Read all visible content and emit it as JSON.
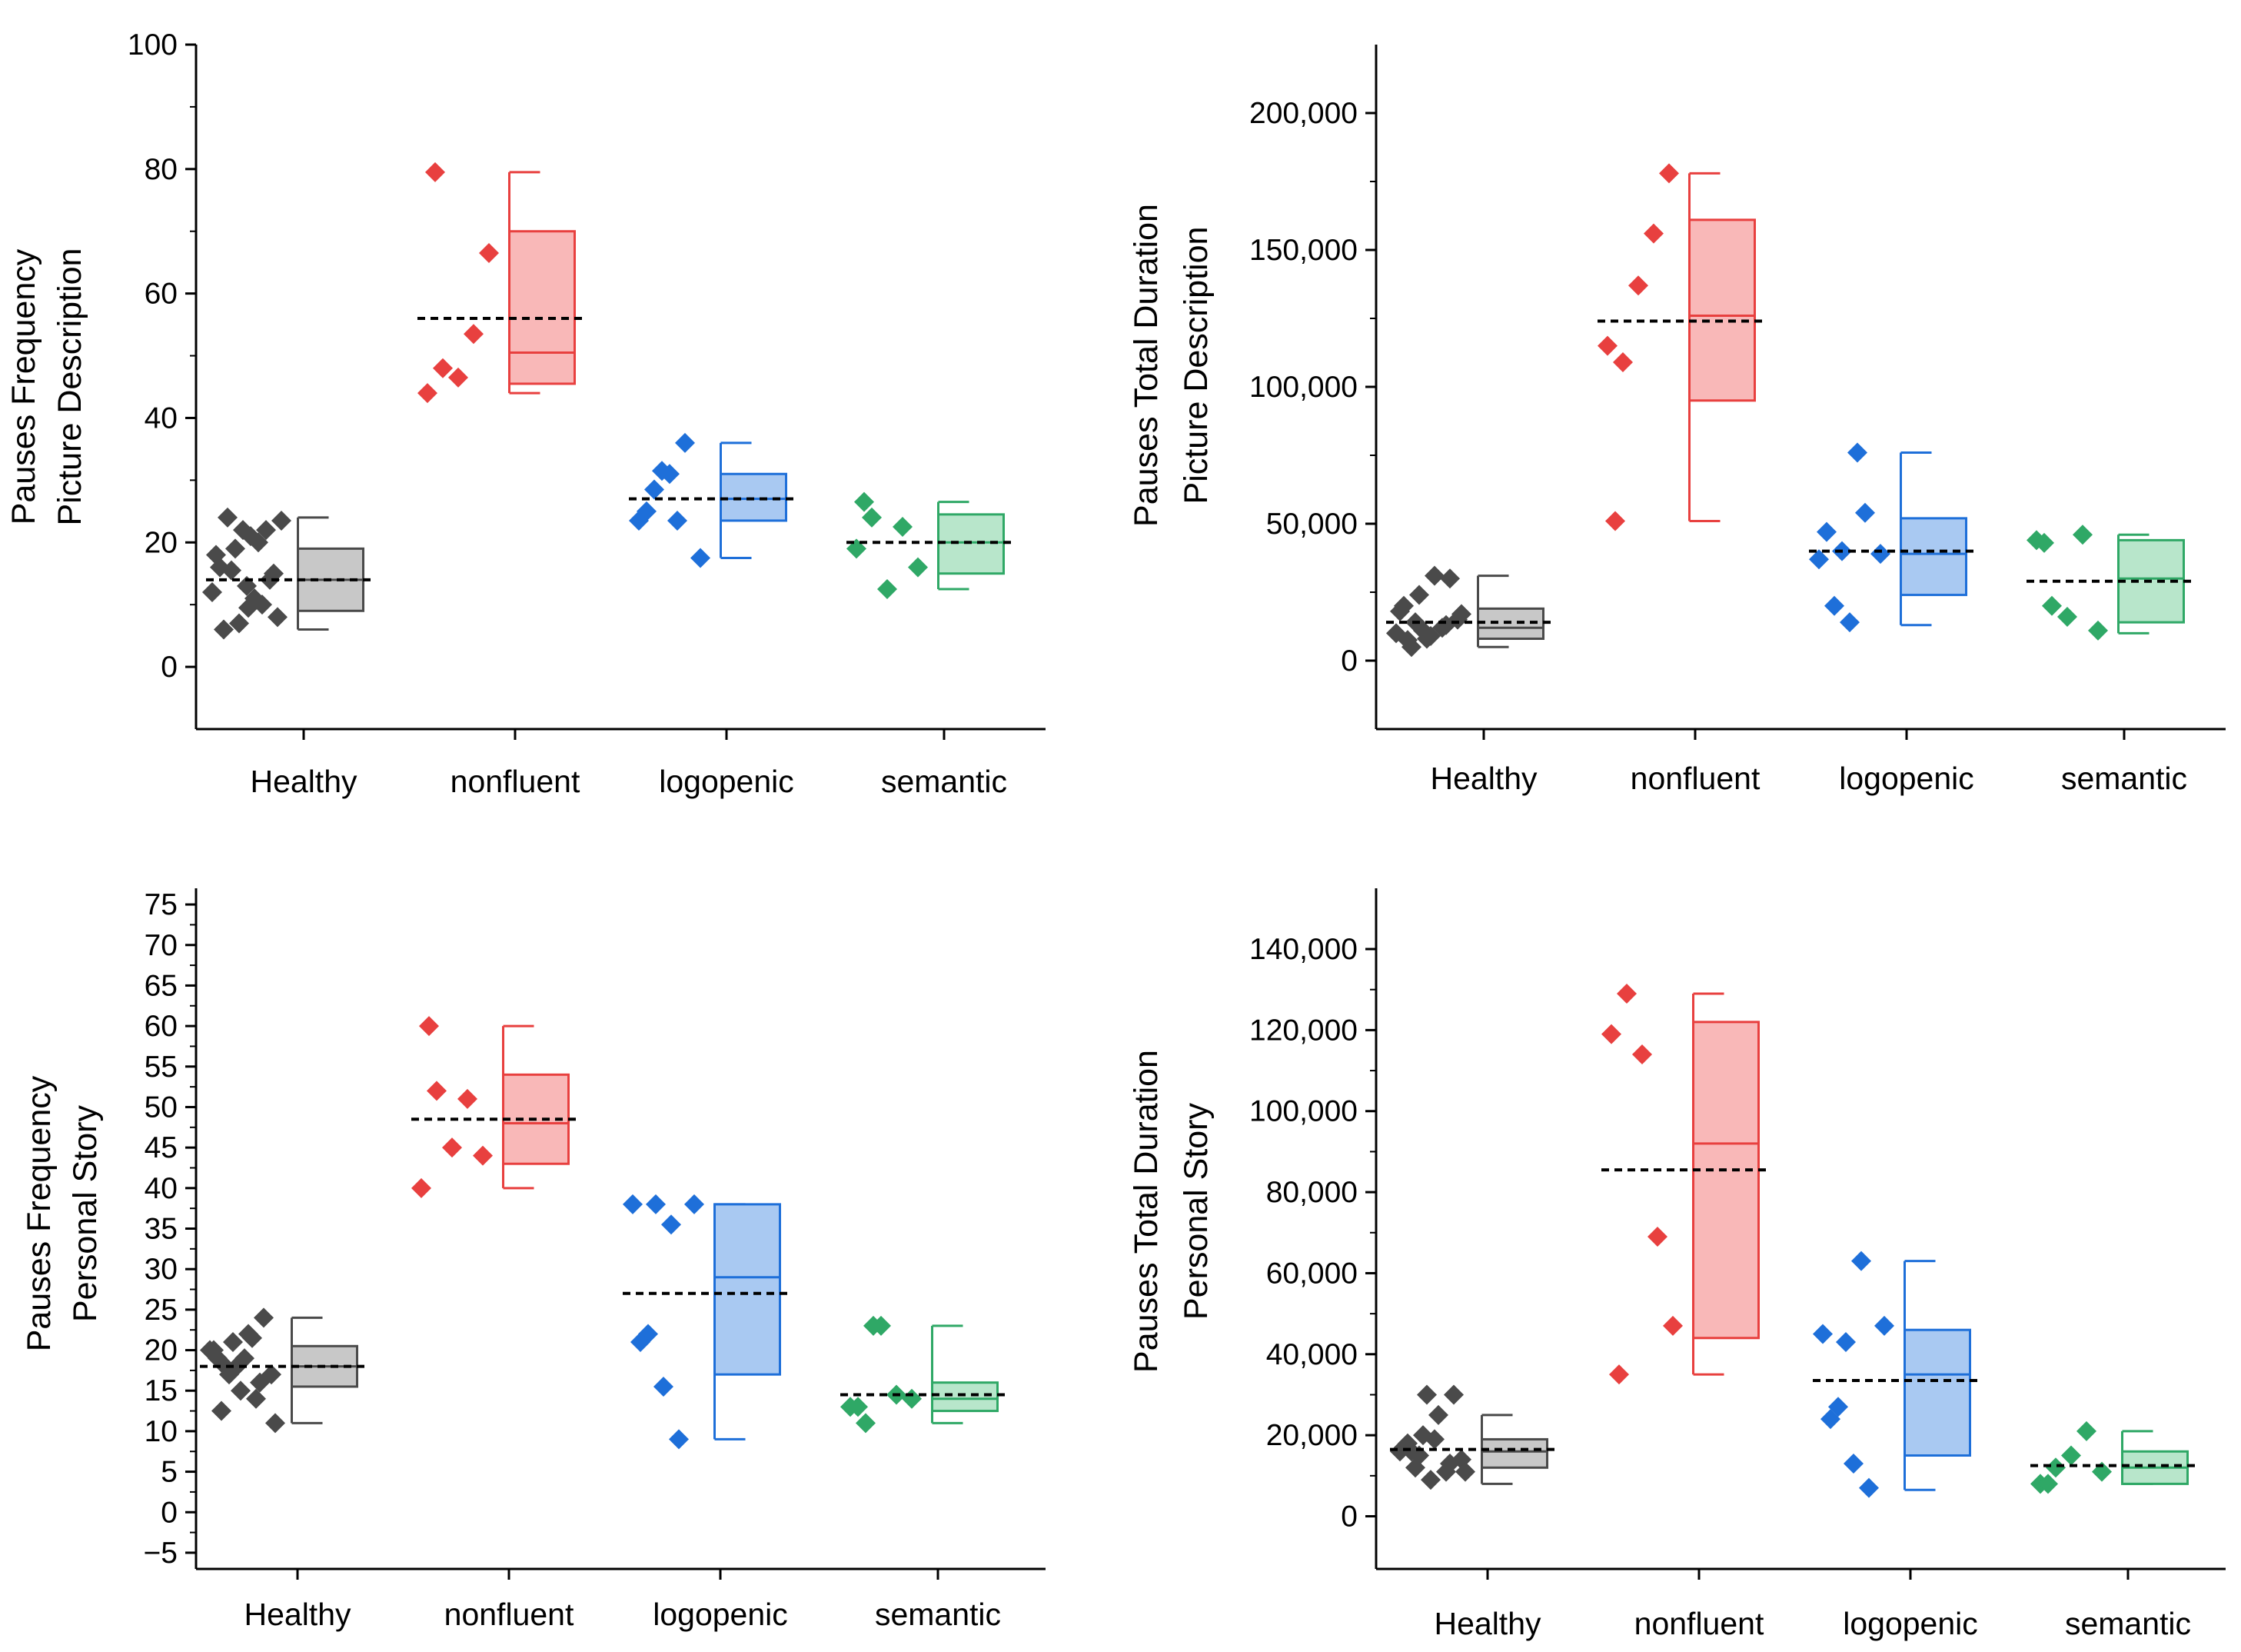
{
  "chart_data": [
    {
      "type": "box_scatter",
      "ylabel_lines": [
        "Pauses Frequency",
        "Picture Description"
      ],
      "ylim": [
        -10,
        100
      ],
      "yticks": [
        0,
        20,
        40,
        60,
        80,
        100
      ],
      "ytick_labels": [
        "0",
        "20",
        "40",
        "60",
        "80",
        "100"
      ],
      "categories": [
        "Healthy",
        "nonfluent",
        "logopenic",
        "semantic"
      ],
      "series": [
        {
          "name": "Healthy",
          "color": "#4a4a4a",
          "fill": "#c8c8c8",
          "points": [
            18,
            15.5,
            13,
            10,
            8,
            6,
            7,
            11,
            14,
            16,
            19,
            21,
            22,
            23.5,
            24,
            22,
            20,
            15,
            12,
            9.5
          ],
          "whisker_low": 6,
          "q1": 9,
          "median": 14,
          "q3": 19,
          "whisker_high": 24,
          "mean": 14
        },
        {
          "name": "nonfluent",
          "color": "#e8403f",
          "fill": "#f9b8b8",
          "points": [
            44,
            48,
            46.5,
            53.5,
            66.5,
            79.5
          ],
          "whisker_low": 44,
          "q1": 45.5,
          "median": 50.5,
          "q3": 70,
          "whisker_high": 79.5,
          "mean": 56
        },
        {
          "name": "logopenic",
          "color": "#1e6fd9",
          "fill": "#a9c9f2",
          "points": [
            23.5,
            28.5,
            31,
            36,
            17.5,
            25,
            31.5,
            23.5
          ],
          "whisker_low": 17.5,
          "q1": 23.5,
          "median": 27,
          "q3": 31,
          "whisker_high": 36,
          "mean": 27
        },
        {
          "name": "semantic",
          "color": "#2fa866",
          "fill": "#b8e6cb",
          "points": [
            19,
            24,
            12.5,
            22.5,
            16,
            26.5
          ],
          "whisker_low": 12.5,
          "q1": 15,
          "median": 20,
          "q3": 24.5,
          "whisker_high": 26.5,
          "mean": 20
        }
      ]
    },
    {
      "type": "box_scatter",
      "ylabel_lines": [
        "Pauses Total Duration",
        "Picture Description"
      ],
      "ylim": [
        -25000,
        225000
      ],
      "yticks": [
        0,
        50000,
        100000,
        150000,
        200000
      ],
      "ytick_labels": [
        "0",
        "50,000",
        "100,000",
        "150,000",
        "200,000"
      ],
      "categories": [
        "Healthy",
        "nonfluent",
        "logopenic",
        "semantic"
      ],
      "series": [
        {
          "name": "Healthy",
          "color": "#4a4a4a",
          "fill": "#c8c8c8",
          "points": [
            10000,
            5000,
            8000,
            12000,
            15000,
            20000,
            24000,
            31000,
            30000,
            18000,
            14000,
            9000,
            13000,
            17000,
            7500,
            11000
          ],
          "whisker_low": 5000,
          "q1": 8000,
          "median": 12000,
          "q3": 19000,
          "whisker_high": 31000,
          "mean": 14000
        },
        {
          "name": "nonfluent",
          "color": "#e8403f",
          "fill": "#f9b8b8",
          "points": [
            115000,
            109000,
            137000,
            156000,
            178000,
            51000
          ],
          "whisker_low": 51000,
          "q1": 95000,
          "median": 126000,
          "q3": 161000,
          "whisker_high": 178000,
          "mean": 124000
        },
        {
          "name": "logopenic",
          "color": "#1e6fd9",
          "fill": "#a9c9f2",
          "points": [
            37000,
            20000,
            14000,
            54000,
            39000,
            47000,
            40000,
            76000
          ],
          "whisker_low": 13000,
          "q1": 24000,
          "median": 39000,
          "q3": 52000,
          "whisker_high": 76000,
          "mean": 40000
        },
        {
          "name": "semantic",
          "color": "#2fa866",
          "fill": "#b8e6cb",
          "points": [
            44000,
            20000,
            16000,
            46000,
            11000,
            43000
          ],
          "whisker_low": 10000,
          "q1": 14000,
          "median": 30000,
          "q3": 44000,
          "whisker_high": 46000,
          "mean": 29000
        }
      ]
    },
    {
      "type": "box_scatter",
      "ylabel_lines": [
        "Pauses Frequency",
        "Personal Story"
      ],
      "ylim": [
        -7,
        77
      ],
      "yticks": [
        -5,
        0,
        5,
        10,
        15,
        20,
        25,
        30,
        35,
        40,
        45,
        50,
        55,
        60,
        65,
        70,
        75
      ],
      "ytick_labels": [
        "−5",
        "0",
        "5",
        "10",
        "15",
        "20",
        "25",
        "30",
        "35",
        "40",
        "45",
        "50",
        "55",
        "60",
        "65",
        "70",
        "75"
      ],
      "categories": [
        "Healthy",
        "nonfluent",
        "logopenic",
        "semantic"
      ],
      "series": [
        {
          "name": "Healthy",
          "color": "#4a4a4a",
          "fill": "#c8c8c8",
          "points": [
            20,
            18,
            15,
            14,
            17,
            19,
            21,
            22,
            24,
            20,
            17,
            19,
            16,
            11,
            12.5,
            18,
            21.5
          ],
          "whisker_low": 11,
          "q1": 15.5,
          "median": 18,
          "q3": 20.5,
          "whisker_high": 24,
          "mean": 18
        },
        {
          "name": "nonfluent",
          "color": "#e8403f",
          "fill": "#f9b8b8",
          "points": [
            40,
            52,
            45,
            51,
            44,
            60
          ],
          "whisker_low": 40,
          "q1": 43,
          "median": 48,
          "q3": 54,
          "whisker_high": 60,
          "mean": 48.5
        },
        {
          "name": "logopenic",
          "color": "#1e6fd9",
          "fill": "#a9c9f2",
          "points": [
            38,
            22,
            15.5,
            9,
            38,
            21,
            38,
            35.5
          ],
          "whisker_low": 9,
          "q1": 17,
          "median": 29,
          "q3": 38,
          "whisker_high": 38,
          "mean": 27
        },
        {
          "name": "semantic",
          "color": "#2fa866",
          "fill": "#b8e6cb",
          "points": [
            13,
            11,
            23,
            14.5,
            14,
            13,
            23
          ],
          "whisker_low": 11,
          "q1": 12.5,
          "median": 14,
          "q3": 16,
          "whisker_high": 23,
          "mean": 14.5
        }
      ]
    },
    {
      "type": "box_scatter",
      "ylabel_lines": [
        "Pauses Total Duration",
        "Personal Story"
      ],
      "ylim": [
        -13000,
        155000
      ],
      "yticks": [
        0,
        20000,
        40000,
        60000,
        80000,
        100000,
        120000,
        140000
      ],
      "ytick_labels": [
        "0",
        "20,000",
        "40,000",
        "60,000",
        "80,000",
        "100,000",
        "120,000",
        "140,000"
      ],
      "categories": [
        "Healthy",
        "nonfluent",
        "logopenic",
        "semantic"
      ],
      "series": [
        {
          "name": "Healthy",
          "color": "#4a4a4a",
          "fill": "#c8c8c8",
          "points": [
            16000,
            12000,
            9000,
            11000,
            14000,
            18000,
            20000,
            25000,
            30000,
            17000,
            15000,
            19000,
            13000,
            11000,
            16000,
            30000
          ],
          "whisker_low": 8000,
          "q1": 12000,
          "median": 16000,
          "q3": 19000,
          "whisker_high": 25000,
          "mean": 16500
        },
        {
          "name": "nonfluent",
          "color": "#e8403f",
          "fill": "#f9b8b8",
          "points": [
            119000,
            129000,
            114000,
            69000,
            47000,
            35000
          ],
          "whisker_low": 35000,
          "q1": 44000,
          "median": 92000,
          "q3": 122000,
          "whisker_high": 129000,
          "mean": 85500
        },
        {
          "name": "logopenic",
          "color": "#1e6fd9",
          "fill": "#a9c9f2",
          "points": [
            45000,
            27000,
            13000,
            7000,
            47000,
            24000,
            43000,
            63000
          ],
          "whisker_low": 6500,
          "q1": 15000,
          "median": 35000,
          "q3": 46000,
          "whisker_high": 63000,
          "mean": 33500
        },
        {
          "name": "semantic",
          "color": "#2fa866",
          "fill": "#b8e6cb",
          "points": [
            8000,
            12000,
            15000,
            21000,
            11000,
            8000
          ],
          "whisker_low": 8000,
          "q1": 8000,
          "median": 12000,
          "q3": 16000,
          "whisker_high": 21000,
          "mean": 12500
        }
      ]
    }
  ]
}
